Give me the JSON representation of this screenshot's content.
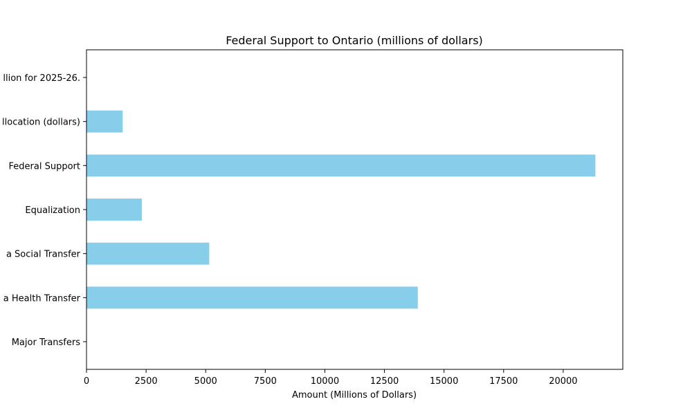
{
  "chart_data": {
    "type": "bar",
    "orientation": "horizontal",
    "title": "Federal Support to Ontario (millions of dollars)",
    "xlabel": "Amount (Millions of Dollars)",
    "ylabel": "",
    "xlim": [
      0,
      22500
    ],
    "xticks": [
      0,
      2500,
      5000,
      7500,
      10000,
      12500,
      15000,
      17500,
      20000
    ],
    "xtick_labels": [
      "0",
      "2500",
      "5000",
      "7500",
      "10000",
      "12500",
      "15000",
      "17500",
      "20000"
    ],
    "categories": [
      "Major Transfers",
      "a Health Transfer",
      "a Social Transfer",
      "Equalization",
      " Federal Support",
      "llocation (dollars)",
      "llion for 2025-26."
    ],
    "values": [
      0,
      13900,
      5150,
      2320,
      21350,
      1520,
      0
    ],
    "bar_color": "#87ceeb",
    "grid": false,
    "legend": "none"
  }
}
